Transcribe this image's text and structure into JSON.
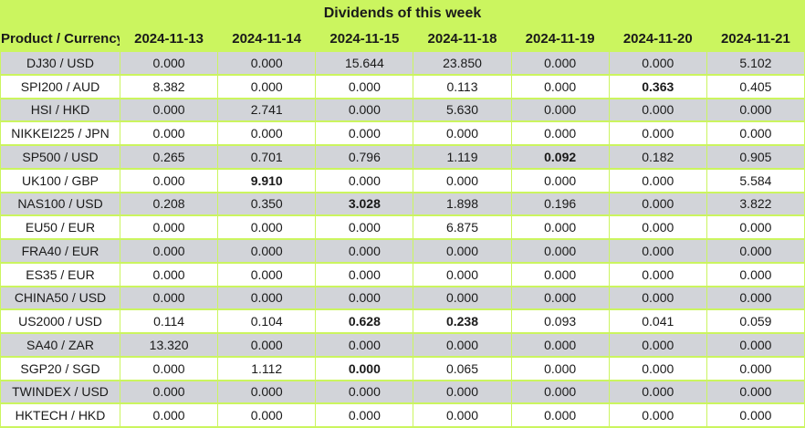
{
  "title": "Dividends of this week",
  "colors": {
    "header_green": "#cbf55f",
    "row_gray": "#d2d4d9",
    "row_white": "#ffffff",
    "text": "#1a1a1a"
  },
  "table": {
    "product_header": "Product / Currency",
    "date_columns": [
      "2024-11-13",
      "2024-11-14",
      "2024-11-15",
      "2024-11-18",
      "2024-11-19",
      "2024-11-20",
      "2024-11-21"
    ],
    "rows": [
      {
        "product": "DJ30 / USD",
        "values": [
          "0.000",
          "0.000",
          "15.644",
          "23.850",
          "0.000",
          "0.000",
          "5.102"
        ],
        "bold": []
      },
      {
        "product": "SPI200 / AUD",
        "values": [
          "8.382",
          "0.000",
          "0.000",
          "0.113",
          "0.000",
          "0.363",
          "0.405"
        ],
        "bold": [
          5
        ]
      },
      {
        "product": "HSI / HKD",
        "values": [
          "0.000",
          "2.741",
          "0.000",
          "5.630",
          "0.000",
          "0.000",
          "0.000"
        ],
        "bold": []
      },
      {
        "product": "NIKKEI225 / JPN",
        "values": [
          "0.000",
          "0.000",
          "0.000",
          "0.000",
          "0.000",
          "0.000",
          "0.000"
        ],
        "bold": []
      },
      {
        "product": "SP500 / USD",
        "values": [
          "0.265",
          "0.701",
          "0.796",
          "1.119",
          "0.092",
          "0.182",
          "0.905"
        ],
        "bold": [
          4
        ]
      },
      {
        "product": "UK100 / GBP",
        "values": [
          "0.000",
          "9.910",
          "0.000",
          "0.000",
          "0.000",
          "0.000",
          "5.584"
        ],
        "bold": [
          1
        ]
      },
      {
        "product": "NAS100 / USD",
        "values": [
          "0.208",
          "0.350",
          "3.028",
          "1.898",
          "0.196",
          "0.000",
          "3.822"
        ],
        "bold": [
          2
        ]
      },
      {
        "product": "EU50 / EUR",
        "values": [
          "0.000",
          "0.000",
          "0.000",
          "6.875",
          "0.000",
          "0.000",
          "0.000"
        ],
        "bold": []
      },
      {
        "product": "FRA40 / EUR",
        "values": [
          "0.000",
          "0.000",
          "0.000",
          "0.000",
          "0.000",
          "0.000",
          "0.000"
        ],
        "bold": []
      },
      {
        "product": "ES35 / EUR",
        "values": [
          "0.000",
          "0.000",
          "0.000",
          "0.000",
          "0.000",
          "0.000",
          "0.000"
        ],
        "bold": []
      },
      {
        "product": "CHINA50 / USD",
        "values": [
          "0.000",
          "0.000",
          "0.000",
          "0.000",
          "0.000",
          "0.000",
          "0.000"
        ],
        "bold": []
      },
      {
        "product": "US2000 / USD",
        "values": [
          "0.114",
          "0.104",
          "0.628",
          "0.238",
          "0.093",
          "0.041",
          "0.059"
        ],
        "bold": [
          2,
          3
        ]
      },
      {
        "product": "SA40 / ZAR",
        "values": [
          "13.320",
          "0.000",
          "0.000",
          "0.000",
          "0.000",
          "0.000",
          "0.000"
        ],
        "bold": []
      },
      {
        "product": "SGP20 / SGD",
        "values": [
          "0.000",
          "1.112",
          "0.000",
          "0.065",
          "0.000",
          "0.000",
          "0.000"
        ],
        "bold": [
          2
        ]
      },
      {
        "product": "TWINDEX / USD",
        "values": [
          "0.000",
          "0.000",
          "0.000",
          "0.000",
          "0.000",
          "0.000",
          "0.000"
        ],
        "bold": []
      },
      {
        "product": "HKTECH / HKD",
        "values": [
          "0.000",
          "0.000",
          "0.000",
          "0.000",
          "0.000",
          "0.000",
          "0.000"
        ],
        "bold": []
      }
    ]
  }
}
